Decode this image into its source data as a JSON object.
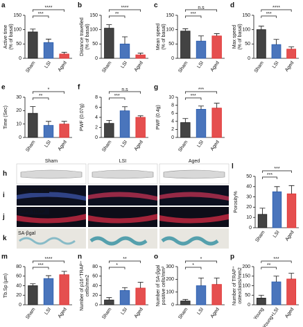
{
  "chart_data": [
    {
      "type": "bar",
      "panel": "a",
      "ylabel": [
        "Active time",
        "(% of basal)"
      ],
      "categories": [
        "Sham",
        "LSI",
        "Aged"
      ],
      "values": [
        92,
        55,
        15
      ],
      "errors": [
        10,
        12,
        6
      ],
      "colors": [
        "#222222",
        "#2a5db0",
        "#e03030"
      ],
      "ylim": [
        0,
        150
      ],
      "yticks": [
        0,
        50,
        100,
        150
      ],
      "significance": [
        "***",
        "****"
      ]
    },
    {
      "type": "bar",
      "panel": "b",
      "ylabel": [
        "Distance travelled",
        "(% of basal)"
      ],
      "categories": [
        "Sham",
        "LSI",
        "Aged"
      ],
      "values": [
        105,
        50,
        12
      ],
      "errors": [
        12,
        25,
        6
      ],
      "colors": [
        "#222222",
        "#2a5db0",
        "#e03030"
      ],
      "ylim": [
        0,
        150
      ],
      "yticks": [
        0,
        50,
        100,
        150
      ],
      "significance": [
        "**",
        "****"
      ]
    },
    {
      "type": "bar",
      "panel": "c",
      "ylabel": [
        "Mean speed",
        "(% of basal)"
      ],
      "categories": [
        "Sham",
        "LSI",
        "Aged"
      ],
      "values": [
        95,
        60,
        78
      ],
      "errors": [
        8,
        18,
        8
      ],
      "colors": [
        "#222222",
        "#2a5db0",
        "#e03030"
      ],
      "ylim": [
        0,
        150
      ],
      "yticks": [
        0,
        50,
        100,
        150
      ],
      "significance": [
        "***",
        "n.s"
      ]
    },
    {
      "type": "bar",
      "panel": "d",
      "ylabel": [
        "Max speed",
        "(% of basal)"
      ],
      "categories": [
        "Sham",
        "LSI",
        "Aged"
      ],
      "values": [
        100,
        48,
        32
      ],
      "errors": [
        12,
        18,
        8
      ],
      "colors": [
        "#222222",
        "#2a5db0",
        "#e03030"
      ],
      "ylim": [
        0,
        150
      ],
      "yticks": [
        0,
        50,
        100,
        150
      ],
      "significance": [
        "***",
        "****"
      ]
    },
    {
      "type": "bar",
      "panel": "e",
      "ylabel": [
        "Time (Sec)"
      ],
      "categories": [
        "Sham",
        "LSI",
        "Aged"
      ],
      "values": [
        18,
        9,
        10
      ],
      "errors": [
        5,
        3,
        2
      ],
      "colors": [
        "#222222",
        "#2a5db0",
        "#e03030"
      ],
      "ylim": [
        0,
        30
      ],
      "yticks": [
        0,
        10,
        20,
        30
      ],
      "significance": [
        "**",
        "*"
      ]
    },
    {
      "type": "bar",
      "panel": "f",
      "ylabel": [
        "PWF (0.07g)"
      ],
      "categories": [
        "Sham",
        "LSI",
        "Aged"
      ],
      "values": [
        2.8,
        5.3,
        4.0
      ],
      "errors": [
        0.6,
        0.8,
        0.3
      ],
      "colors": [
        "#222222",
        "#2a5db0",
        "#e03030"
      ],
      "ylim": [
        0,
        8
      ],
      "yticks": [
        0,
        2,
        4,
        6,
        8
      ],
      "significance": [
        "***",
        "n.s"
      ]
    },
    {
      "type": "bar",
      "panel": "g",
      "ylabel": [
        "PWF (0.4g)"
      ],
      "categories": [
        "Sham",
        "LSI",
        "Aged"
      ],
      "values": [
        3.7,
        7.0,
        7.3
      ],
      "errors": [
        1.0,
        0.8,
        1.2
      ],
      "colors": [
        "#222222",
        "#2a5db0",
        "#e03030"
      ],
      "ylim": [
        0,
        10
      ],
      "yticks": [
        0,
        2,
        4,
        6,
        8,
        10
      ],
      "significance": [
        "***",
        "***"
      ]
    },
    {
      "type": "bar",
      "panel": "l",
      "ylabel": [
        "Porosity%"
      ],
      "categories": [
        "Sham",
        "LSI",
        "Aged"
      ],
      "values": [
        13,
        35,
        33
      ],
      "errors": [
        6,
        5,
        8
      ],
      "colors": [
        "#222222",
        "#2a5db0",
        "#e03030"
      ],
      "ylim": [
        0,
        50
      ],
      "yticks": [
        0,
        10,
        20,
        30,
        40,
        50
      ],
      "significance": [
        "***",
        "***"
      ]
    },
    {
      "type": "bar",
      "panel": "m",
      "ylabel": [
        "Tb.Sp (µm)"
      ],
      "categories": [
        "Sham",
        "LSI",
        "Aged"
      ],
      "values": [
        40,
        55,
        63
      ],
      "errors": [
        4,
        6,
        7
      ],
      "colors": [
        "#222222",
        "#2a5db0",
        "#e03030"
      ],
      "ylim": [
        0,
        80
      ],
      "yticks": [
        0,
        20,
        40,
        60,
        80
      ],
      "significance": [
        "***",
        "****"
      ]
    },
    {
      "type": "bar",
      "panel": "n",
      "ylabel": [
        "Number of p16⁺TRAP⁺",
        "cells/mm2"
      ],
      "categories": [
        "Sham",
        "LSI",
        "Aged"
      ],
      "values": [
        10,
        30,
        35
      ],
      "errors": [
        5,
        6,
        12
      ],
      "colors": [
        "#222222",
        "#2a5db0",
        "#e03030"
      ],
      "ylim": [
        0,
        80
      ],
      "yticks": [
        0,
        20,
        40,
        60,
        80
      ],
      "significance": [
        "*",
        "**"
      ]
    },
    {
      "type": "bar",
      "panel": "o",
      "ylabel": [
        "Number of SA-βgal",
        "positive cells/mm²"
      ],
      "categories": [
        "Sham",
        "LSI",
        "Aged"
      ],
      "values": [
        30,
        150,
        160
      ],
      "errors": [
        12,
        60,
        50
      ],
      "colors": [
        "#222222",
        "#2a5db0",
        "#e03030"
      ],
      "ylim": [
        0,
        300
      ],
      "yticks": [
        0,
        100,
        200,
        300
      ],
      "significance": [
        "*",
        "*"
      ]
    },
    {
      "type": "bar",
      "panel": "p",
      "ylabel": [
        "Number of TRAP⁺",
        "osteoclasts/mm2"
      ],
      "categories": [
        "Young",
        "Young+LSI",
        "Aged"
      ],
      "values": [
        35,
        120,
        135
      ],
      "errors": [
        15,
        30,
        30
      ],
      "colors": [
        "#222222",
        "#2a5db0",
        "#e03030"
      ],
      "ylim": [
        0,
        200
      ],
      "yticks": [
        0,
        50,
        100,
        150,
        200
      ],
      "significance": [
        "**",
        "***"
      ]
    }
  ],
  "images": {
    "columns": [
      "Sham",
      "LSI",
      "Aged"
    ],
    "rows": [
      {
        "panel": "h",
        "label": ""
      },
      {
        "panel": "i",
        "label": "DAPI/ p16/ TRAP"
      },
      {
        "panel": "j",
        "label": "DAPI/ TRAP"
      },
      {
        "panel": "k",
        "label": "SA-βgal"
      }
    ]
  }
}
